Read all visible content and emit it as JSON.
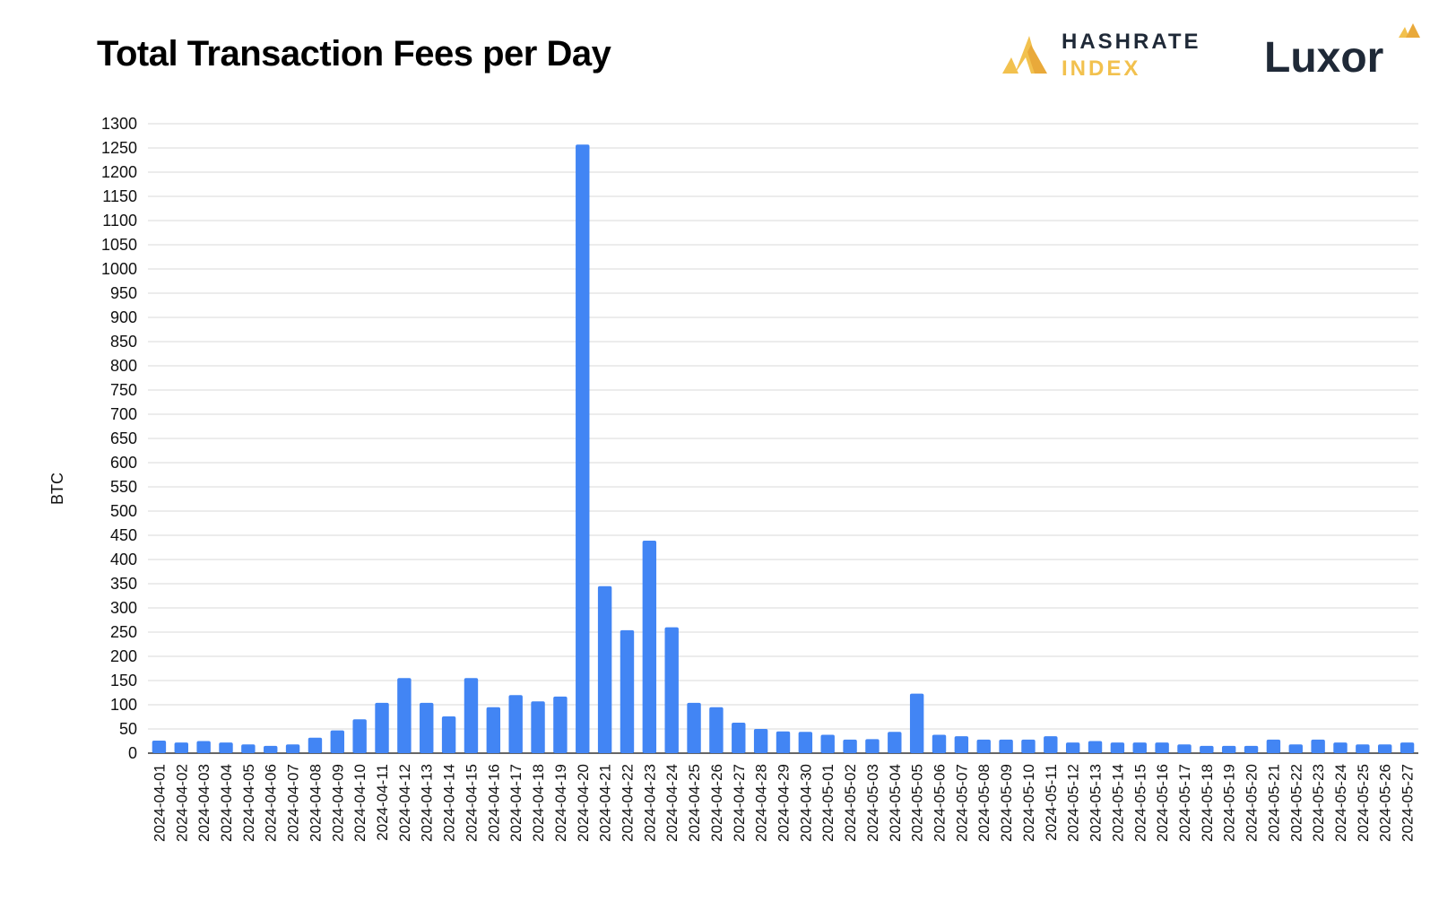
{
  "header": {
    "title": "Total Transaction Fees per Day",
    "hashrate_logo_line1": "HASHRATE",
    "hashrate_logo_line2": "INDEX",
    "luxor_logo": "Luxor"
  },
  "colors": {
    "bar": "#4285f4",
    "grid": "#d9d9d9",
    "hashrate_dark": "#1f2937",
    "hashrate_gold": "#f2c14e",
    "luxor_gold": "#f2c14e"
  },
  "chart_data": {
    "type": "bar",
    "title": "Total Transaction Fees per Day",
    "ylabel": "BTC",
    "xlabel": "",
    "ylim": [
      0,
      1300
    ],
    "ytick_step": 50,
    "grid": true,
    "legend": "none",
    "categories": [
      "2024-04-01",
      "2024-04-02",
      "2024-04-03",
      "2024-04-04",
      "2024-04-05",
      "2024-04-06",
      "2024-04-07",
      "2024-04-08",
      "2024-04-09",
      "2024-04-10",
      "2024-04-11",
      "2024-04-12",
      "2024-04-13",
      "2024-04-14",
      "2024-04-15",
      "2024-04-16",
      "2024-04-17",
      "2024-04-18",
      "2024-04-19",
      "2024-04-20",
      "2024-04-21",
      "2024-04-22",
      "2024-04-23",
      "2024-04-24",
      "2024-04-25",
      "2024-04-26",
      "2024-04-27",
      "2024-04-28",
      "2024-04-29",
      "2024-04-30",
      "2024-05-01",
      "2024-05-02",
      "2024-05-03",
      "2024-05-04",
      "2024-05-05",
      "2024-05-06",
      "2024-05-07",
      "2024-05-08",
      "2024-05-09",
      "2024-05-10",
      "2024-05-11",
      "2024-05-12",
      "2024-05-13",
      "2024-05-14",
      "2024-05-15",
      "2024-05-16",
      "2024-05-17",
      "2024-05-18",
      "2024-05-19",
      "2024-05-20",
      "2024-05-21",
      "2024-05-22",
      "2024-05-23",
      "2024-05-24",
      "2024-05-25",
      "2024-05-26",
      "2024-05-27"
    ],
    "values": [
      26,
      22,
      25,
      22,
      18,
      15,
      18,
      32,
      47,
      70,
      104,
      155,
      104,
      76,
      155,
      95,
      120,
      107,
      117,
      1257,
      345,
      254,
      439,
      260,
      104,
      95,
      63,
      50,
      45,
      44,
      38,
      28,
      29,
      44,
      123,
      38,
      35,
      28,
      28,
      28,
      35,
      22,
      25,
      22,
      22,
      22,
      18,
      15,
      15,
      15,
      28,
      18,
      28,
      22,
      18,
      18,
      22
    ]
  }
}
